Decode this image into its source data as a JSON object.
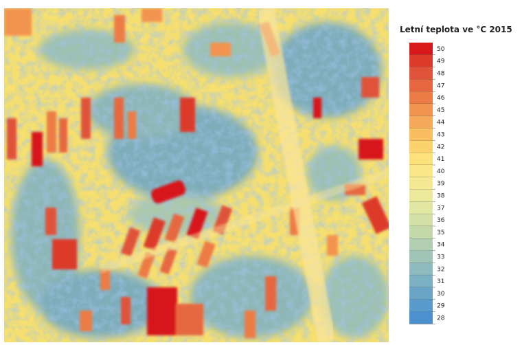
{
  "map": {
    "title": "Letní teplota ve °C 2015"
  },
  "legend": {
    "values": [
      50,
      49,
      48,
      47,
      46,
      45,
      44,
      43,
      42,
      41,
      40,
      39,
      38,
      37,
      36,
      35,
      34,
      33,
      32,
      31,
      30,
      29,
      28
    ],
    "colors": {
      "50": "#d7191c",
      "49": "#dc3a2a",
      "48": "#e0523a",
      "47": "#e6673f",
      "46": "#ec7c45",
      "45": "#f2944f",
      "44": "#f6a958",
      "43": "#f9be60",
      "42": "#fbd26c",
      "41": "#fde17a",
      "40": "#f9e788",
      "39": "#f4e992",
      "38": "#ece99b",
      "37": "#e1e6a2",
      "36": "#d3e0a6",
      "35": "#c3d9aa",
      "34": "#b1cfb0",
      "33": "#a0c5b6",
      "32": "#8ebbbd",
      "31": "#7cb0c3",
      "30": "#6aa5c8",
      "29": "#5a9bcd",
      "28": "#4b90cf"
    }
  }
}
